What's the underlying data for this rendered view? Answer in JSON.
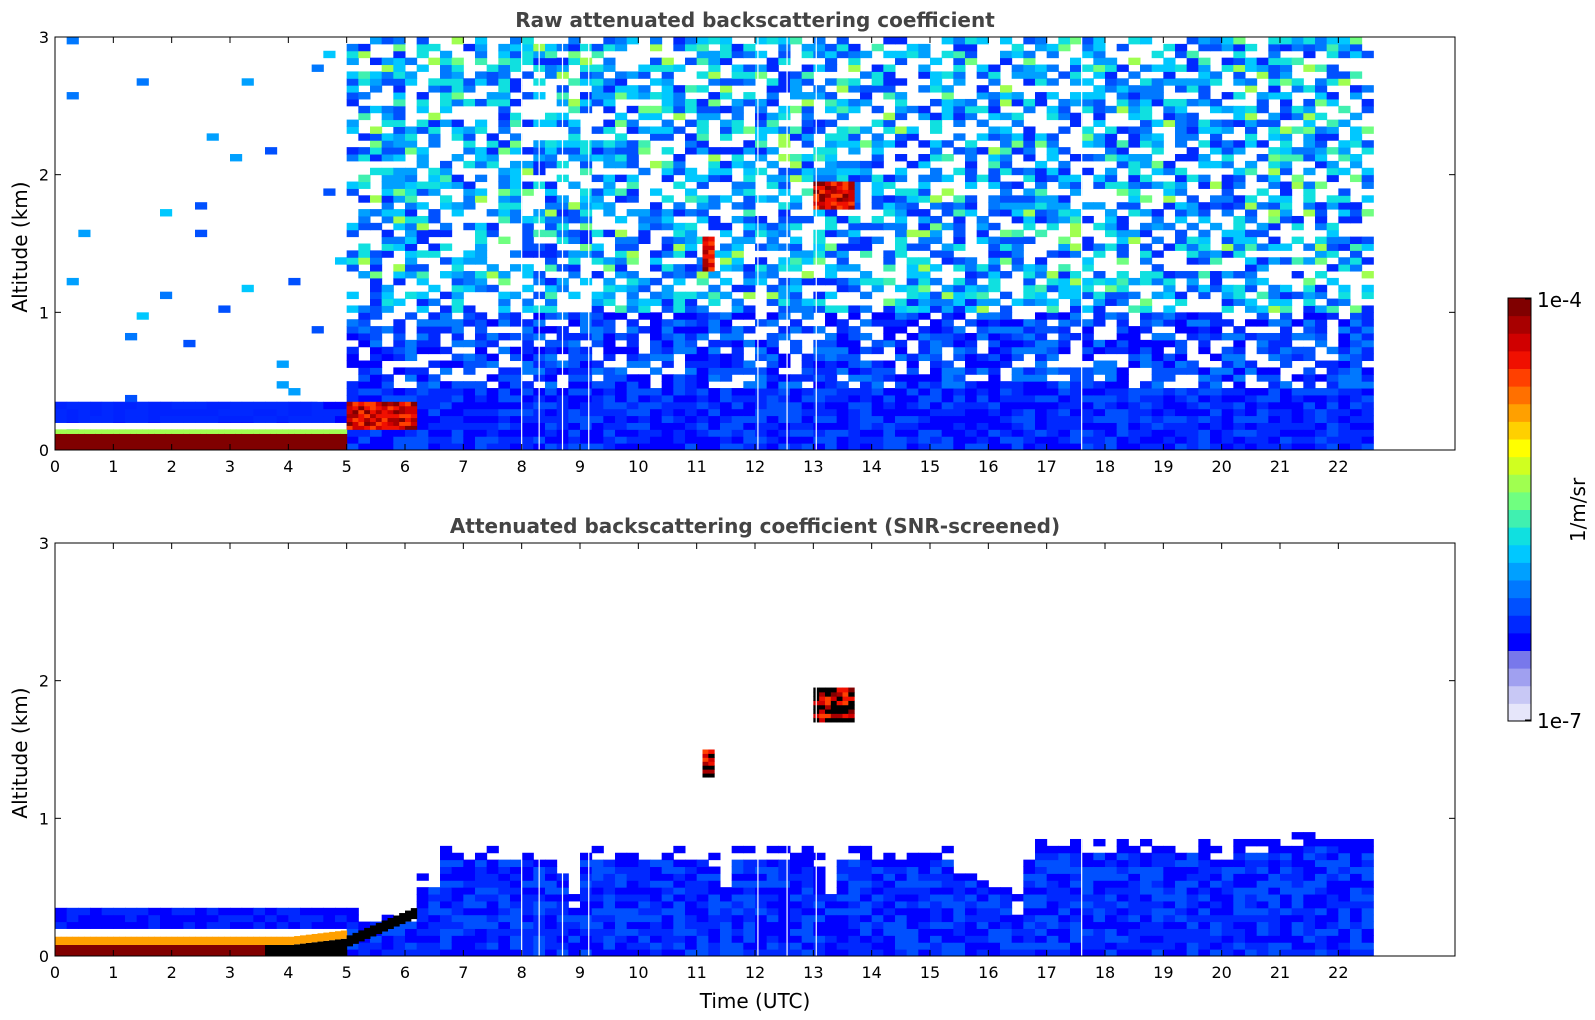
{
  "chart_data": [
    {
      "type": "heatmap",
      "title": "Raw attenuated backscattering coefficient",
      "xlabel": "",
      "ylabel": "Altitude (km)",
      "xlim": [
        0,
        24
      ],
      "ylim": [
        0,
        3
      ],
      "x_ticks": [
        "0",
        "1",
        "2",
        "3",
        "4",
        "5",
        "6",
        "7",
        "8",
        "9",
        "10",
        "11",
        "12",
        "13",
        "14",
        "15",
        "16",
        "17",
        "18",
        "19",
        "20",
        "21",
        "22"
      ],
      "y_ticks": [
        "0",
        "1",
        "2",
        "3"
      ],
      "data_end_time": 22.4,
      "features": [
        {
          "name": "near-surface high layer",
          "time": [
            0,
            5.0
          ],
          "altitude": [
            0.0,
            0.15
          ],
          "level": "1e-4"
        },
        {
          "name": "rising layer",
          "time": [
            5.0,
            6.2
          ],
          "altitude": [
            0.15,
            0.35
          ],
          "level": "1e-4"
        },
        {
          "name": "aerosol layer",
          "time": [
            0,
            4.5
          ],
          "altitude": [
            0.2,
            0.35
          ],
          "level": "low"
        },
        {
          "name": "cloud",
          "time": [
            11.1,
            11.3
          ],
          "altitude": [
            1.3,
            1.55
          ],
          "level": "1e-4"
        },
        {
          "name": "cloud",
          "time": [
            13.0,
            13.7
          ],
          "altitude": [
            1.75,
            1.95
          ],
          "level": "1e-4"
        }
      ]
    },
    {
      "type": "heatmap",
      "title": "Attenuated backscattering coefficient (SNR-screened)",
      "xlabel": "Time (UTC)",
      "ylabel": "Altitude (km)",
      "xlim": [
        0,
        24
      ],
      "ylim": [
        0,
        3
      ],
      "x_ticks": [
        "0",
        "1",
        "2",
        "3",
        "4",
        "5",
        "6",
        "7",
        "8",
        "9",
        "10",
        "11",
        "12",
        "13",
        "14",
        "15",
        "16",
        "17",
        "18",
        "19",
        "20",
        "21",
        "22"
      ],
      "y_ticks": [
        "0",
        "1",
        "2",
        "3"
      ],
      "data_end_time": 22.4,
      "features": [
        {
          "name": "boundary layer",
          "time": [
            6.2,
            22.4
          ],
          "altitude": [
            0.0,
            0.7
          ],
          "level": "low"
        },
        {
          "name": "cloud",
          "time": [
            11.1,
            11.3
          ],
          "altitude": [
            1.3,
            1.5
          ],
          "level": "1e-4"
        },
        {
          "name": "cloud",
          "time": [
            13.0,
            13.7
          ],
          "altitude": [
            1.7,
            1.95
          ],
          "level": "1e-4"
        }
      ]
    }
  ],
  "colorbar": {
    "max_label": "1e-4",
    "min_label": "1e-7",
    "unit_label": "1/m/sr",
    "colors": [
      "#e6e6fa",
      "#c8c8f5",
      "#a0a0f0",
      "#7878eb",
      "#0000ff",
      "#0028ff",
      "#0050ff",
      "#0078ff",
      "#00a0ff",
      "#00c8ff",
      "#10e0e0",
      "#40f0b0",
      "#70ff80",
      "#a0ff50",
      "#d0ff20",
      "#ffff00",
      "#ffd000",
      "#ffa000",
      "#ff7000",
      "#ff4000",
      "#f01000",
      "#d00000",
      "#a80000",
      "#800000"
    ]
  }
}
